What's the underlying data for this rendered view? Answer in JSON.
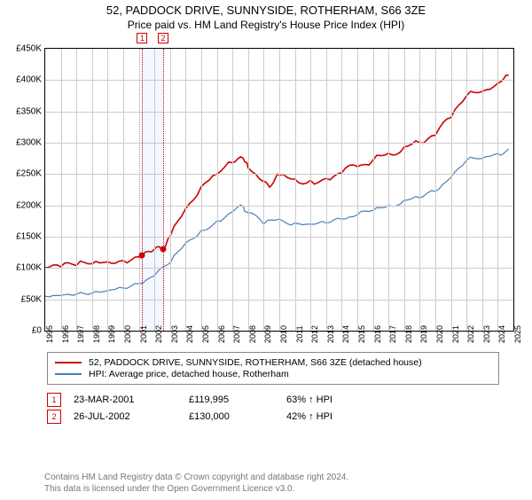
{
  "title_line1": "52, PADDOCK DRIVE, SUNNYSIDE, ROTHERHAM, S66 3ZE",
  "title_line2": "Price paid vs. HM Land Registry's House Price Index (HPI)",
  "chart": {
    "type": "line",
    "x_min": 1995,
    "x_max": 2025,
    "y_min": 0,
    "y_max": 450000,
    "y_tick_step": 50000,
    "currency_prefix": "£",
    "grid_color": "#cccccc",
    "border_color": "#000000",
    "background_color": "#ffffff",
    "axis_fontsize": 10,
    "xtick_rotation": -90,
    "series": {
      "paid": {
        "label": "52, PADDOCK DRIVE, SUNNYSIDE, ROTHERHAM, S66 3ZE (detached house)",
        "color": "#cc0000",
        "line_width": 1.6,
        "values": [
          [
            1995.0,
            100000
          ],
          [
            1996.0,
            102000
          ],
          [
            1997.0,
            104000
          ],
          [
            1998.0,
            107000
          ],
          [
            1999.0,
            110000
          ],
          [
            2000.0,
            112000
          ],
          [
            2001.0,
            118000
          ],
          [
            2001.22,
            119995
          ],
          [
            2002.0,
            130000
          ],
          [
            2002.56,
            130000
          ],
          [
            2003.0,
            150000
          ],
          [
            2004.0,
            195000
          ],
          [
            2005.0,
            230000
          ],
          [
            2006.0,
            250000
          ],
          [
            2007.0,
            268000
          ],
          [
            2007.7,
            275000
          ],
          [
            2008.0,
            260000
          ],
          [
            2009.0,
            238000
          ],
          [
            2009.5,
            232000
          ],
          [
            2010.0,
            248000
          ],
          [
            2011.0,
            242000
          ],
          [
            2012.0,
            240000
          ],
          [
            2013.0,
            243000
          ],
          [
            2014.0,
            252000
          ],
          [
            2015.0,
            262000
          ],
          [
            2016.0,
            272000
          ],
          [
            2017.0,
            283000
          ],
          [
            2018.0,
            293000
          ],
          [
            2019.0,
            300000
          ],
          [
            2020.0,
            312000
          ],
          [
            2021.0,
            340000
          ],
          [
            2022.0,
            375000
          ],
          [
            2023.0,
            382000
          ],
          [
            2024.0,
            395000
          ],
          [
            2024.7,
            408000
          ]
        ]
      },
      "hpi": {
        "label": "HPI: Average price, detached house, Rotherham",
        "color": "#4a7ebb",
        "line_width": 1.2,
        "values": [
          [
            1995.0,
            55000
          ],
          [
            1996.0,
            56000
          ],
          [
            1997.0,
            58000
          ],
          [
            1998.0,
            60000
          ],
          [
            1999.0,
            64000
          ],
          [
            2000.0,
            68000
          ],
          [
            2001.0,
            75000
          ],
          [
            2002.0,
            88000
          ],
          [
            2003.0,
            108000
          ],
          [
            2004.0,
            140000
          ],
          [
            2005.0,
            160000
          ],
          [
            2006.0,
            175000
          ],
          [
            2007.0,
            190000
          ],
          [
            2007.7,
            198000
          ],
          [
            2008.0,
            188000
          ],
          [
            2009.0,
            170000
          ],
          [
            2010.0,
            178000
          ],
          [
            2011.0,
            172000
          ],
          [
            2012.0,
            170000
          ],
          [
            2013.0,
            172000
          ],
          [
            2014.0,
            178000
          ],
          [
            2015.0,
            185000
          ],
          [
            2016.0,
            192000
          ],
          [
            2017.0,
            200000
          ],
          [
            2018.0,
            208000
          ],
          [
            2019.0,
            212000
          ],
          [
            2020.0,
            222000
          ],
          [
            2021.0,
            245000
          ],
          [
            2022.0,
            272000
          ],
          [
            2023.0,
            275000
          ],
          [
            2024.0,
            283000
          ],
          [
            2024.7,
            290000
          ]
        ]
      }
    },
    "sale_markers": [
      {
        "id": "1",
        "year": 2001.22,
        "price": 119995
      },
      {
        "id": "2",
        "year": 2002.56,
        "price": 130000
      }
    ]
  },
  "legend": {
    "items": [
      {
        "color": "#cc0000",
        "label": "52, PADDOCK DRIVE, SUNNYSIDE, ROTHERHAM, S66 3ZE (detached house)"
      },
      {
        "color": "#4a7ebb",
        "label": "HPI: Average price, detached house, Rotherham"
      }
    ]
  },
  "history": [
    {
      "id": "1",
      "date": "23-MAR-2001",
      "price": "£119,995",
      "rel": "63% ↑ HPI"
    },
    {
      "id": "2",
      "date": "26-JUL-2002",
      "price": "£130,000",
      "rel": "42% ↑ HPI"
    }
  ],
  "footer_line1": "Contains HM Land Registry data © Crown copyright and database right 2024.",
  "footer_line2": "This data is licensed under the Open Government Licence v3.0."
}
